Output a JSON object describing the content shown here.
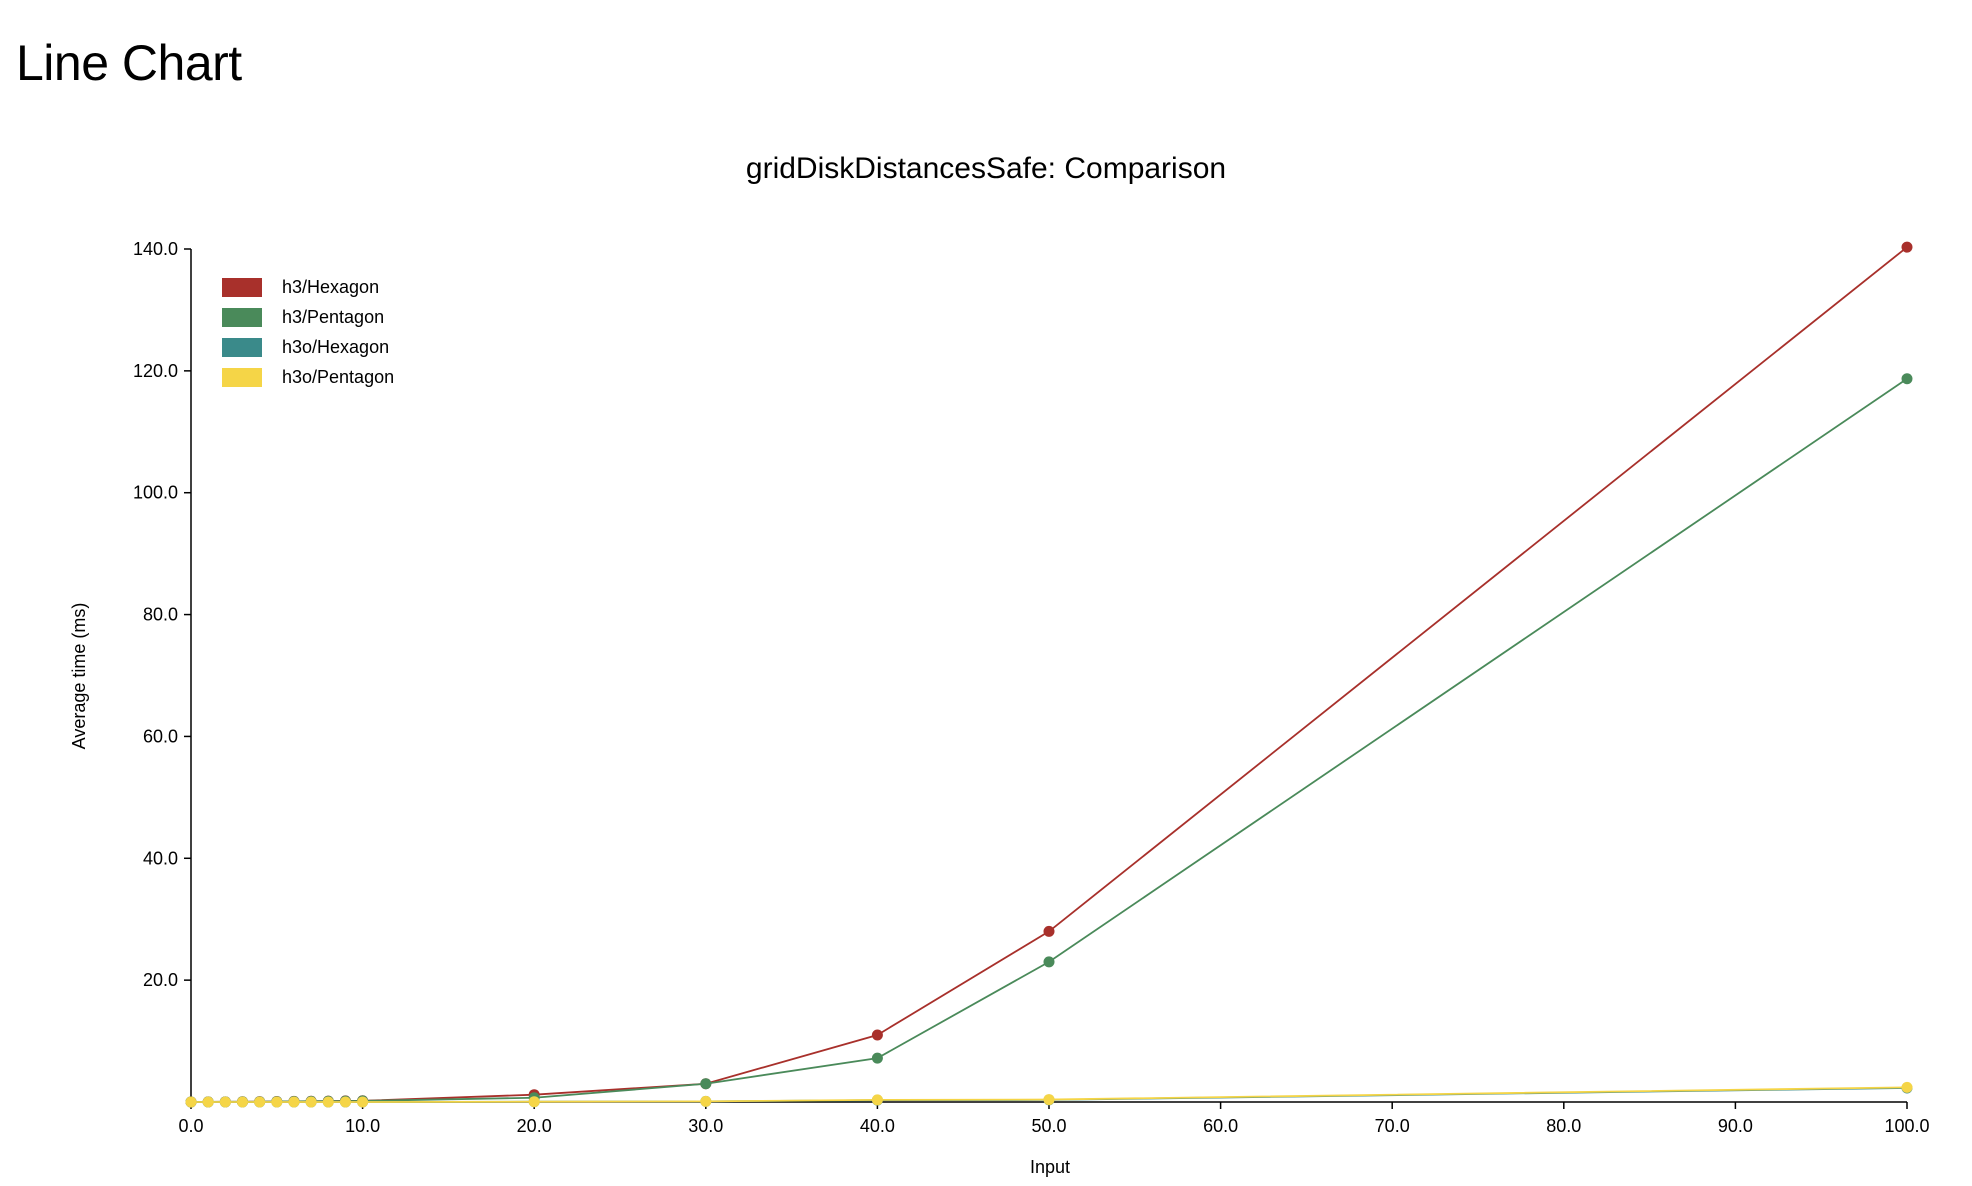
{
  "page": {
    "heading": "Line Chart"
  },
  "chart_data": {
    "type": "line",
    "title": "gridDiskDistancesSafe: Comparison",
    "xlabel": "Input",
    "ylabel": "Average time (ms)",
    "xlim": [
      0,
      100
    ],
    "ylim": [
      0,
      140
    ],
    "x_ticks": [
      "0.0",
      "10.0",
      "20.0",
      "30.0",
      "40.0",
      "50.0",
      "60.0",
      "70.0",
      "80.0",
      "90.0",
      "100.0"
    ],
    "x_tick_values": [
      0,
      10,
      20,
      30,
      40,
      50,
      60,
      70,
      80,
      90,
      100
    ],
    "y_ticks": [
      "20.0",
      "40.0",
      "60.0",
      "80.0",
      "100.0",
      "120.0",
      "140.0"
    ],
    "y_tick_values": [
      20,
      40,
      60,
      80,
      100,
      120,
      140
    ],
    "grid": false,
    "legend_position": "top-left",
    "x": [
      0,
      1,
      2,
      3,
      4,
      5,
      6,
      7,
      8,
      9,
      10,
      20,
      30,
      40,
      50,
      100
    ],
    "series": [
      {
        "name": "h3/Hexagon",
        "color": "#a8302b",
        "values": [
          0.01,
          0.02,
          0.03,
          0.04,
          0.06,
          0.08,
          0.1,
          0.12,
          0.15,
          0.18,
          0.2,
          1.2,
          3.0,
          11.0,
          28.0,
          140.3
        ]
      },
      {
        "name": "h3/Pentagon",
        "color": "#4a8a5a",
        "values": [
          0.01,
          0.02,
          0.03,
          0.04,
          0.05,
          0.07,
          0.09,
          0.11,
          0.13,
          0.15,
          0.18,
          0.7,
          3.0,
          7.2,
          23.0,
          118.7
        ]
      },
      {
        "name": "h3o/Hexagon",
        "color": "#3a8a8a",
        "values": [
          0.0,
          0.0,
          0.0,
          0.0,
          0.0,
          0.0,
          0.0,
          0.0,
          0.0,
          0.0,
          0.0,
          0.05,
          0.1,
          0.3,
          0.35,
          2.3
        ]
      },
      {
        "name": "h3o/Pentagon",
        "color": "#f5d547",
        "values": [
          0.0,
          0.0,
          0.0,
          0.0,
          0.0,
          0.0,
          0.0,
          0.0,
          0.0,
          0.0,
          0.0,
          0.05,
          0.1,
          0.35,
          0.4,
          2.4
        ]
      }
    ]
  }
}
